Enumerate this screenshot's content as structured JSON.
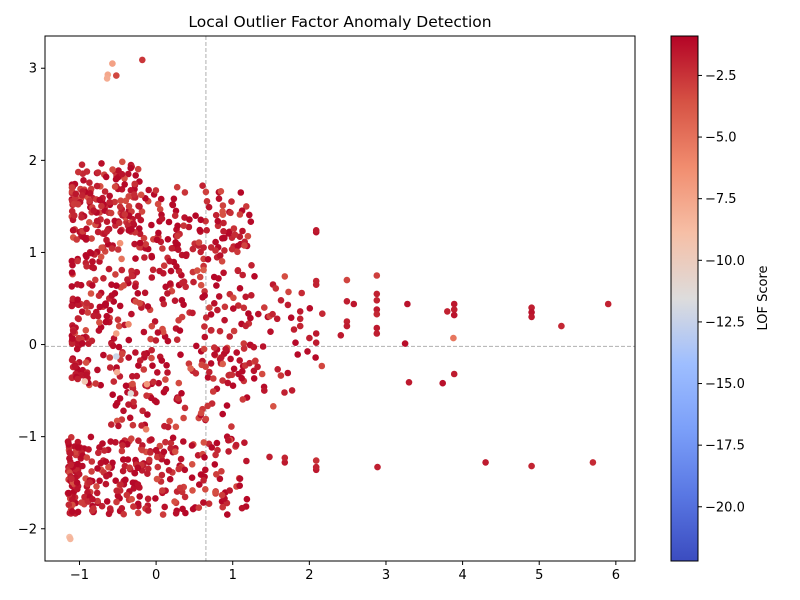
{
  "chart_data": {
    "type": "scatter",
    "title": "Local Outlier Factor Anomaly Detection",
    "xlabel": "",
    "ylabel": "",
    "xlim": [
      -1.45,
      6.25
    ],
    "ylim": [
      -2.35,
      3.35
    ],
    "xticks": [
      -1,
      0,
      1,
      2,
      3,
      4,
      5,
      6
    ],
    "yticks": [
      -2,
      -1,
      0,
      1,
      2,
      3
    ],
    "grid": false,
    "reference_lines": {
      "vertical_x": 0.65,
      "horizontal_y": -0.02,
      "style": "dashed",
      "color": "#b0b0b0"
    },
    "colormap": "coolwarm",
    "colorbar": {
      "label": "LOF Score",
      "range": [
        -22.2,
        -0.9
      ],
      "ticks": [
        -2.5,
        -5.0,
        -7.5,
        -10.0,
        -12.5,
        -15.0,
        -17.5,
        -20.0
      ],
      "tick_labels": [
        "−2.5",
        "−5.0",
        "−7.5",
        "−10.0",
        "−12.5",
        "−15.0",
        "−17.5",
        "−20.0"
      ]
    },
    "points": [
      {
        "x": -0.63,
        "y": 2.93,
        "score": -7.6
      },
      {
        "x": -0.64,
        "y": 2.89,
        "score": -7.9
      },
      {
        "x": -0.57,
        "y": 3.05,
        "score": -7.3
      },
      {
        "x": -0.52,
        "y": 2.92,
        "score": -3.2
      },
      {
        "x": -0.18,
        "y": 3.09,
        "score": -2.6
      },
      {
        "x": -1.13,
        "y": -2.09,
        "score": -8.8
      },
      {
        "x": -1.12,
        "y": -2.11,
        "score": -8.4
      },
      {
        "x": -0.33,
        "y": -0.53,
        "score": -11.2
      },
      {
        "x": -0.52,
        "y": -0.13,
        "score": -12.3
      },
      {
        "x": -0.93,
        "y": -0.4,
        "score": -9.5
      },
      {
        "x": -0.51,
        "y": -0.3,
        "score": -8.0
      },
      {
        "x": -0.12,
        "y": -0.43,
        "score": -6.8
      },
      {
        "x": -0.52,
        "y": 0.12,
        "score": -7.2
      },
      {
        "x": -0.47,
        "y": 1.1,
        "score": -6.5
      },
      {
        "x": -0.13,
        "y": -0.92,
        "score": -5.5
      },
      {
        "x": -0.45,
        "y": 0.93,
        "score": -5.0
      },
      {
        "x": -0.36,
        "y": 0.22,
        "score": -5.8
      },
      {
        "x": 3.88,
        "y": 0.07,
        "score": -5.2
      },
      {
        "x": 0.45,
        "y": -0.26,
        "score": -4.4
      },
      {
        "x": 0.87,
        "y": -0.21,
        "score": -4.1
      },
      {
        "x": 1.53,
        "y": -0.67,
        "score": -3.6
      },
      {
        "x": 1.68,
        "y": 0.74,
        "score": -3.4
      },
      {
        "x": 0.62,
        "y": 0.81,
        "score": -4.0
      },
      {
        "x": 2.49,
        "y": 0.7,
        "score": -3.1
      },
      {
        "x": 2.88,
        "y": 0.75,
        "score": -2.9
      },
      {
        "x": 0.36,
        "y": 1.29,
        "score": -2.5
      },
      {
        "x": 0.66,
        "y": 1.24,
        "score": -1.8
      },
      {
        "x": 0.88,
        "y": 1.32,
        "score": -1.9
      },
      {
        "x": 0.88,
        "y": 1.23,
        "score": -1.7
      },
      {
        "x": 2.09,
        "y": 1.22,
        "score": -1.3
      },
      {
        "x": 2.09,
        "y": 1.24,
        "score": -1.6
      },
      {
        "x": 3.28,
        "y": 0.44,
        "score": -1.4
      },
      {
        "x": 3.25,
        "y": 0.01,
        "score": -1.2
      },
      {
        "x": 3.3,
        "y": -0.41,
        "score": -1.6
      },
      {
        "x": 3.74,
        "y": -0.42,
        "score": -1.3
      },
      {
        "x": 3.8,
        "y": 0.36,
        "score": -1.9
      },
      {
        "x": 3.89,
        "y": 0.44,
        "score": -1.5
      },
      {
        "x": 3.89,
        "y": 0.38,
        "score": -1.8
      },
      {
        "x": 3.89,
        "y": 0.32,
        "score": -1.4
      },
      {
        "x": 3.89,
        "y": -0.32,
        "score": -1.7
      },
      {
        "x": 4.9,
        "y": 0.4,
        "score": -1.8
      },
      {
        "x": 4.9,
        "y": 0.35,
        "score": -1.4
      },
      {
        "x": 4.9,
        "y": 0.3,
        "score": -1.6
      },
      {
        "x": 5.29,
        "y": 0.2,
        "score": -2.1
      },
      {
        "x": 5.9,
        "y": 0.44,
        "score": -1.9
      },
      {
        "x": 4.3,
        "y": -1.28,
        "score": -1.7
      },
      {
        "x": 4.9,
        "y": -1.32,
        "score": -2.0
      },
      {
        "x": 5.7,
        "y": -1.28,
        "score": -2.2
      },
      {
        "x": 2.89,
        "y": -1.33,
        "score": -1.8
      },
      {
        "x": 2.09,
        "y": -1.36,
        "score": -1.5
      },
      {
        "x": 2.09,
        "y": -1.33,
        "score": -1.9
      },
      {
        "x": 2.09,
        "y": -1.26,
        "score": -2.4
      },
      {
        "x": 1.68,
        "y": -1.28,
        "score": -1.6
      },
      {
        "x": 1.68,
        "y": -1.23,
        "score": -2.0
      },
      {
        "x": 1.48,
        "y": -1.22,
        "score": -1.8
      },
      {
        "x": 2.41,
        "y": 0.1,
        "score": -1.6
      },
      {
        "x": 2.49,
        "y": 0.47,
        "score": -1.8
      },
      {
        "x": 2.49,
        "y": 0.25,
        "score": -1.9
      },
      {
        "x": 2.49,
        "y": 0.2,
        "score": -1.7
      },
      {
        "x": 2.58,
        "y": 0.44,
        "score": -1.5
      },
      {
        "x": 2.88,
        "y": 0.55,
        "score": -1.9
      },
      {
        "x": 2.88,
        "y": 0.48,
        "score": -2.0
      },
      {
        "x": 2.88,
        "y": 0.38,
        "score": -1.7
      },
      {
        "x": 2.88,
        "y": 0.33,
        "score": -2.1
      },
      {
        "x": 2.88,
        "y": 0.18,
        "score": -1.6
      },
      {
        "x": 2.88,
        "y": 0.12,
        "score": -1.8
      },
      {
        "x": 2.09,
        "y": 0.69,
        "score": -2.0
      },
      {
        "x": 2.09,
        "y": 0.65,
        "score": -1.9
      },
      {
        "x": 2.09,
        "y": 0.12,
        "score": -1.5
      },
      {
        "x": 2.09,
        "y": 0.02,
        "score": -1.7
      },
      {
        "x": 2.0,
        "y": 0.07,
        "score": -1.8
      },
      {
        "x": 1.9,
        "y": 0.56,
        "score": -2.2
      },
      {
        "x": 1.88,
        "y": 0.36,
        "score": -1.6
      },
      {
        "x": 1.88,
        "y": 0.28,
        "score": -1.9
      },
      {
        "x": 1.88,
        "y": 0.2,
        "score": -2.0
      },
      {
        "x": 1.72,
        "y": 0.43,
        "score": -1.7
      },
      {
        "x": 1.63,
        "y": 0.48,
        "score": -1.8
      },
      {
        "x": 1.58,
        "y": 0.28,
        "score": -1.6
      },
      {
        "x": 1.52,
        "y": 0.33,
        "score": -2.0
      }
    ]
  }
}
